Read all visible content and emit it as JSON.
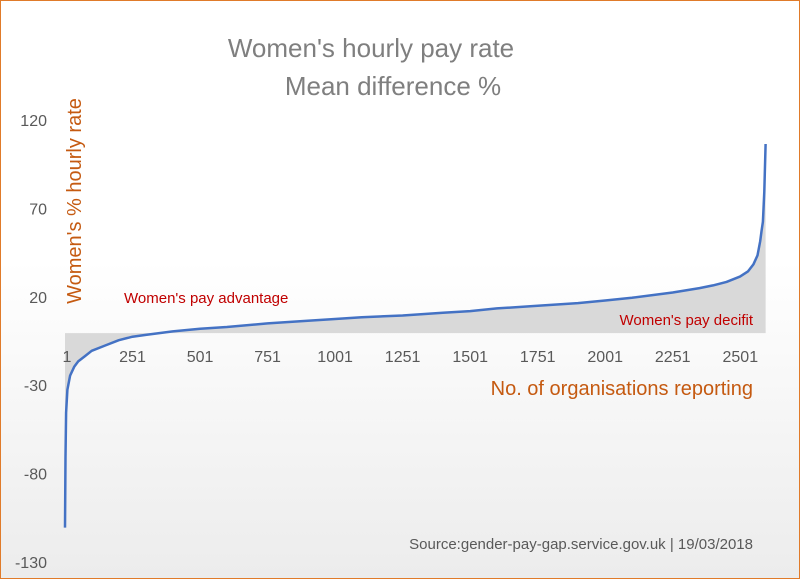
{
  "chart_data": {
    "type": "line",
    "title": [
      "Women's hourly pay rate",
      "Mean difference %"
    ],
    "xlabel": "No. of organisations reporting",
    "ylabel": "Women's % hourly rate",
    "ylim": [
      -130,
      120
    ],
    "xlim": [
      1,
      2600
    ],
    "yticks": [
      120,
      70,
      20,
      -30,
      -80,
      -130
    ],
    "xticks": [
      1,
      251,
      501,
      751,
      1001,
      1251,
      1501,
      1751,
      2001,
      2251,
      2501
    ],
    "baseline": 0,
    "annotations": {
      "advantage": "Women's pay advantage",
      "deficit": "Women's pay decifit"
    },
    "source": "Source:gender-pay-gap.service.gov.uk | 19/03/2018",
    "series": [
      {
        "x": [
          1,
          3,
          5,
          10,
          20,
          35,
          50,
          75,
          100,
          150,
          200,
          251,
          300,
          400,
          501,
          600,
          751,
          900,
          1001,
          1100,
          1251,
          1400,
          1501,
          1600,
          1751,
          1900,
          2001,
          2100,
          2251,
          2350,
          2400,
          2450,
          2500,
          2530,
          2550,
          2565,
          2575,
          2580,
          2585,
          2590,
          2595
        ],
        "values": [
          -110,
          -70,
          -45,
          -32,
          -24,
          -19,
          -16,
          -13,
          -10,
          -7,
          -4,
          -2,
          -1,
          1,
          2.5,
          3.5,
          5.5,
          7,
          8,
          9,
          10,
          11.5,
          12.5,
          14,
          15.5,
          17,
          18.5,
          20,
          23,
          25.5,
          27,
          29,
          32,
          35,
          39,
          44,
          52,
          58,
          63,
          80,
          107
        ]
      }
    ],
    "colors": {
      "line": "#4472c4",
      "fill": "#d9d9d9",
      "frame": "#e07b2a"
    }
  }
}
